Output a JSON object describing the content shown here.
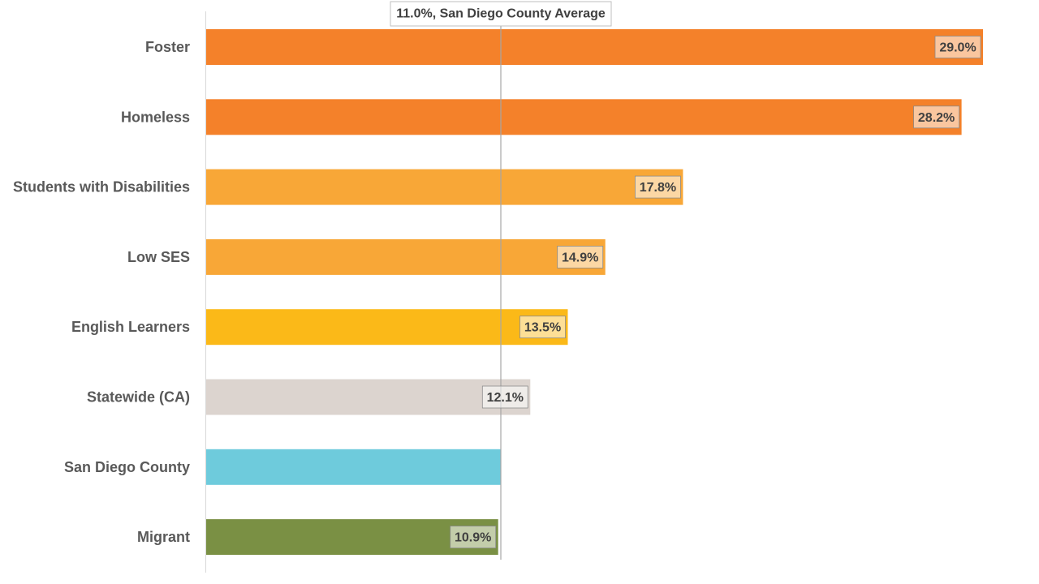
{
  "chart_data": {
    "type": "bar",
    "orientation": "horizontal",
    "title": "",
    "xlabel": "",
    "ylabel": "",
    "xlim": [
      0,
      30
    ],
    "grid": false,
    "legend": "none",
    "categories": [
      "Foster",
      "Homeless",
      "Students with Disabilities",
      "Low SES",
      "English Learners",
      "Statewide (CA)",
      "San Diego County",
      "Migrant"
    ],
    "values": [
      29.0,
      28.2,
      17.8,
      14.9,
      13.5,
      12.1,
      11.0,
      10.9
    ],
    "value_labels": [
      "29.0%",
      "28.2%",
      "17.8%",
      "14.9%",
      "13.5%",
      "12.1%",
      "",
      "10.9%"
    ],
    "colors": [
      "#F4812A",
      "#F4812A",
      "#F8A737",
      "#F8A737",
      "#FBB918",
      "#DCD4CF",
      "#6ECBDC",
      "#7A9044"
    ],
    "reference_line": {
      "value": 11.0,
      "label": "11.0%, San Diego County Average"
    }
  }
}
